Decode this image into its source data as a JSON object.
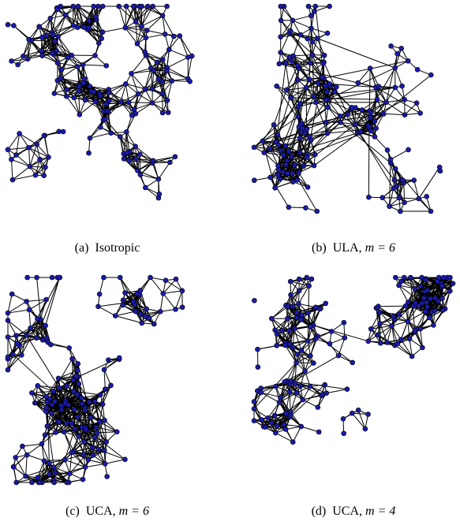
{
  "figure": {
    "node_color": "#1a1aa8",
    "node_stroke": "#000000",
    "edge_color": "#000000",
    "panels": [
      {
        "id": "a",
        "caption_label": "(a)",
        "caption_text": "Isotropic",
        "caption_math": ""
      },
      {
        "id": "b",
        "caption_label": "(b)",
        "caption_text": "ULA, ",
        "caption_math": "m = 6"
      },
      {
        "id": "c",
        "caption_label": "(c)",
        "caption_text": "UCA, ",
        "caption_math": "m = 6"
      },
      {
        "id": "d",
        "caption_label": "(d)",
        "caption_text": "UCA, ",
        "caption_math": "m = 4"
      }
    ]
  }
}
